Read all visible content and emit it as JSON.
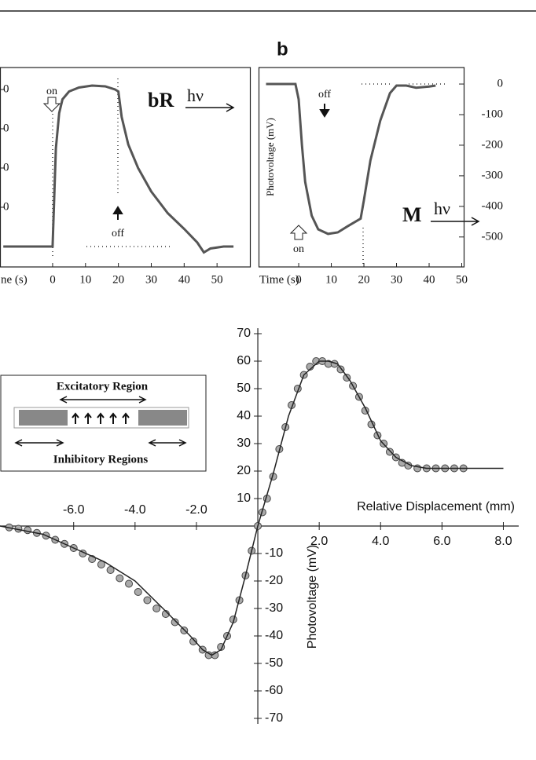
{
  "chart_data": [
    {
      "type": "line",
      "x_label": "ne (s)",
      "molecule": "bR",
      "light": "hν",
      "on_label": "on",
      "off_label": "off",
      "x": [
        -15,
        -5,
        -1,
        0,
        1,
        2,
        3,
        5,
        8,
        12,
        16,
        19,
        20,
        21,
        23,
        26,
        30,
        35,
        40,
        44,
        46,
        48,
        52,
        55
      ],
      "series": [
        {
          "color": "#555555",
          "values": [
            0,
            0,
            0,
            0,
            250,
            340,
            375,
            395,
            405,
            410,
            408,
            400,
            395,
            330,
            260,
            200,
            140,
            85,
            45,
            10,
            -15,
            -5,
            0,
            0
          ]
        }
      ],
      "xlim": [
        -16,
        60
      ],
      "xticks": [
        0,
        10,
        20,
        30,
        40,
        50
      ],
      "ylim": [
        -52,
        456
      ],
      "yticks": [
        {
          "value": 400,
          "label": "0"
        },
        {
          "value": 300,
          "label": "0"
        },
        {
          "value": 200,
          "label": "0"
        },
        {
          "value": 100,
          "label": "0"
        }
      ]
    },
    {
      "type": "line",
      "panel_label": "b",
      "x_label": "Time (s)",
      "y_label": "Photovoltage (mV)",
      "molecule": "M",
      "light": "hν",
      "on_label": "on",
      "off_label": "off",
      "x": [
        -10,
        -5,
        -1,
        0,
        1,
        2,
        4,
        6,
        9,
        12,
        15,
        19,
        20,
        22,
        25,
        28,
        30,
        33,
        36,
        40,
        42
      ],
      "series": [
        {
          "color": "#555555",
          "values": [
            0,
            0,
            0,
            -50,
            -200,
            -320,
            -430,
            -475,
            -490,
            -485,
            -465,
            -440,
            -380,
            -250,
            -120,
            -30,
            -5,
            -5,
            -12,
            -8,
            -5
          ]
        }
      ],
      "xlim": [
        -12.3,
        50.6
      ],
      "xticks": [
        0,
        10,
        20,
        30,
        40,
        50
      ],
      "ylim": [
        -598,
        54
      ],
      "yticks": [
        0,
        -100,
        -200,
        -300,
        -400,
        -500
      ]
    },
    {
      "type": "scatter",
      "x_label": "Relative Displacement (mm)",
      "y_label": "Photovoltage (mV)",
      "inset": {
        "top_label": "Excitatory Region",
        "bottom_label": "Inhibitory Regions"
      },
      "series": [
        {
          "type": "scatter",
          "color": "#aaaaaa",
          "x": [
            -8.1,
            -7.8,
            -7.5,
            -7.2,
            -6.9,
            -6.6,
            -6.3,
            -6.0,
            -5.7,
            -5.4,
            -5.1,
            -4.8,
            -4.5,
            -4.2,
            -3.9,
            -3.6,
            -3.3,
            -3.0,
            -2.7,
            -2.4,
            -2.1,
            -1.8,
            -1.6,
            -1.4,
            -1.2,
            -1.0,
            -0.8,
            -0.6,
            -0.4,
            -0.2,
            0,
            0.15,
            0.3,
            0.5,
            0.7,
            0.9,
            1.1,
            1.3,
            1.5,
            1.7,
            1.9,
            2.1,
            2.3,
            2.5,
            2.7,
            2.9,
            3.1,
            3.3,
            3.5,
            3.7,
            3.9,
            4.1,
            4.3,
            4.5,
            4.7,
            4.9,
            5.2,
            5.5,
            5.8,
            6.1,
            6.4,
            6.7
          ],
          "values": [
            -0.5,
            -1,
            -1.5,
            -2.5,
            -3.5,
            -5,
            -6.5,
            -8,
            -10,
            -12,
            -14,
            -16,
            -19,
            -21,
            -24,
            -27,
            -30,
            -32,
            -35,
            -38,
            -42,
            -45,
            -47,
            -47,
            -44,
            -40,
            -34,
            -27,
            -18,
            -9,
            0,
            5,
            10,
            18,
            28,
            36,
            44,
            50,
            55,
            58,
            60,
            60,
            59,
            59,
            57,
            54,
            51,
            47,
            42,
            37,
            33,
            30,
            27,
            25,
            23,
            22,
            21,
            21,
            21,
            21,
            21,
            21
          ]
        },
        {
          "type": "line",
          "color": "#222222",
          "x": [
            -8.4,
            -7,
            -6,
            -5,
            -4,
            -3,
            -2.2,
            -1.8,
            -1.5,
            -1.2,
            -0.8,
            -0.4,
            0,
            0.5,
            1,
            1.5,
            2,
            2.3,
            2.6,
            3,
            3.5,
            4,
            4.5,
            5,
            5.5,
            6,
            7,
            8
          ],
          "values": [
            0,
            -3,
            -8,
            -13,
            -20,
            -31,
            -40,
            -45,
            -47,
            -45,
            -35,
            -18,
            0,
            19,
            40,
            55,
            60,
            60,
            59,
            53,
            43,
            31,
            25,
            22,
            21,
            21,
            21,
            21
          ]
        }
      ],
      "xlim": [
        -8.4,
        8.5
      ],
      "xticks": [
        {
          "value": -6,
          "label": "-6.0"
        },
        {
          "value": -4,
          "label": "-4.0"
        },
        {
          "value": -2,
          "label": "-2.0"
        },
        {
          "value": 2,
          "label": "2.0"
        },
        {
          "value": 4,
          "label": "4.0"
        },
        {
          "value": 6,
          "label": "6.0"
        },
        {
          "value": 8,
          "label": "8.0"
        }
      ],
      "ylim": [
        -72,
        72
      ],
      "yticks": [
        70,
        60,
        50,
        40,
        30,
        20,
        10,
        -10,
        -20,
        -30,
        -40,
        -50,
        -60,
        -70
      ]
    }
  ]
}
